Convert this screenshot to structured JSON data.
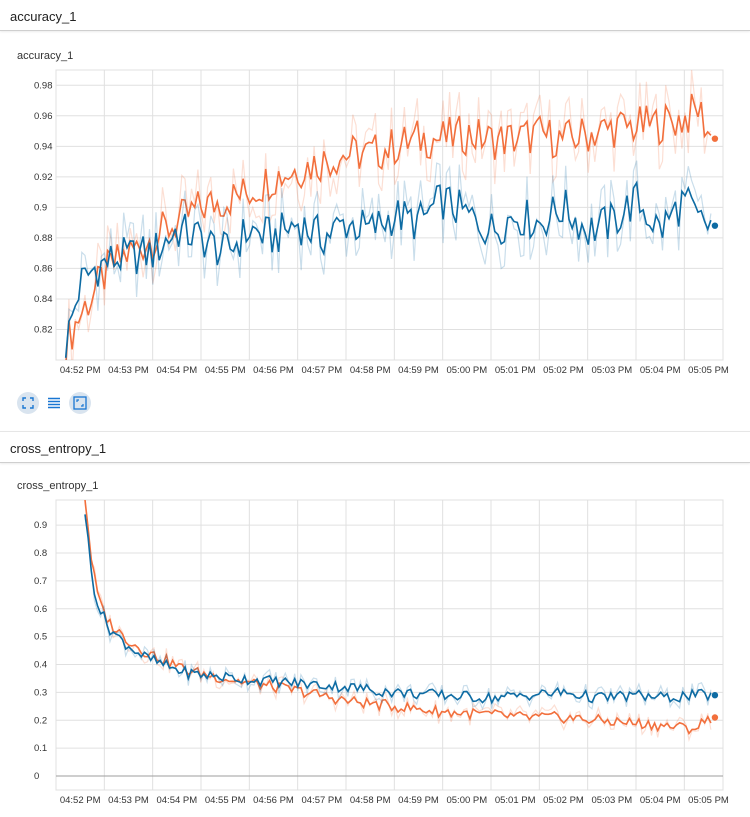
{
  "cards": [
    {
      "title": "accuracy_1",
      "chart_label": "accuracy_1"
    },
    {
      "title": "cross_entropy_1",
      "chart_label": "cross_entropy_1"
    }
  ],
  "toolbar": {
    "icons": [
      "fit-domain-icon",
      "toggle-log-icon",
      "expand-icon"
    ]
  },
  "colors": {
    "orange": "#f26f3c",
    "blue": "#0d6ba3",
    "grid": "#e0e0e0"
  },
  "chart_data": [
    {
      "type": "line",
      "title": "accuracy_1",
      "x_ticks": [
        "04:52 PM",
        "04:53 PM",
        "04:54 PM",
        "04:55 PM",
        "04:56 PM",
        "04:57 PM",
        "04:58 PM",
        "04:59 PM",
        "05:00 PM",
        "05:01 PM",
        "05:02 PM",
        "05:03 PM",
        "05:04 PM",
        "05:05 PM"
      ],
      "y_ticks": [
        "0.82",
        "0.84",
        "0.86",
        "0.88",
        "0.9",
        "0.92",
        "0.94",
        "0.96",
        "0.98"
      ],
      "ylim": [
        0.8,
        0.99
      ],
      "xlim_minutes": [
        0,
        13.8
      ],
      "grid": true,
      "series": [
        {
          "color": "orange",
          "x": [
            0.2,
            0.5,
            0.8,
            1.1,
            1.5,
            2.0,
            2.5,
            3.0,
            3.5,
            4.0,
            4.5,
            5.0,
            5.5,
            6.0,
            6.5,
            7.0,
            7.5,
            8.0,
            8.5,
            9.0,
            9.5,
            10.0,
            10.5,
            11.0,
            11.5,
            12.0,
            12.5,
            13.0,
            13.3,
            13.55
          ],
          "y": [
            0.81,
            0.83,
            0.845,
            0.86,
            0.87,
            0.88,
            0.89,
            0.9,
            0.905,
            0.91,
            0.92,
            0.925,
            0.93,
            0.935,
            0.935,
            0.94,
            0.945,
            0.945,
            0.948,
            0.944,
            0.945,
            0.948,
            0.944,
            0.948,
            0.952,
            0.953,
            0.955,
            0.958,
            0.965,
            0.945
          ]
        },
        {
          "color": "blue",
          "x": [
            0.2,
            0.5,
            0.8,
            1.1,
            1.5,
            2.0,
            2.5,
            3.0,
            3.5,
            4.0,
            4.5,
            5.0,
            5.5,
            6.0,
            6.5,
            7.0,
            7.5,
            8.0,
            8.5,
            9.0,
            9.5,
            10.0,
            10.5,
            11.0,
            11.5,
            12.0,
            12.5,
            13.0,
            13.3,
            13.55
          ],
          "y": [
            0.81,
            0.85,
            0.86,
            0.865,
            0.868,
            0.87,
            0.885,
            0.88,
            0.87,
            0.885,
            0.88,
            0.89,
            0.88,
            0.89,
            0.885,
            0.895,
            0.89,
            0.905,
            0.895,
            0.885,
            0.895,
            0.89,
            0.9,
            0.885,
            0.89,
            0.905,
            0.885,
            0.905,
            0.89,
            0.888
          ]
        }
      ]
    },
    {
      "type": "line",
      "title": "cross_entropy_1",
      "x_ticks": [
        "04:52 PM",
        "04:53 PM",
        "04:54 PM",
        "04:55 PM",
        "04:56 PM",
        "04:57 PM",
        "04:58 PM",
        "04:59 PM",
        "05:00 PM",
        "05:01 PM",
        "05:02 PM",
        "05:03 PM",
        "05:04 PM",
        "05:05 PM"
      ],
      "y_ticks": [
        "0",
        "0.1",
        "0.2",
        "0.3",
        "0.4",
        "0.5",
        "0.6",
        "0.7",
        "0.8",
        "0.9"
      ],
      "ylim": [
        -0.05,
        0.99
      ],
      "xlim_minutes": [
        0,
        13.8
      ],
      "grid": true,
      "series": [
        {
          "color": "orange",
          "x": [
            0.6,
            0.75,
            0.9,
            1.1,
            1.4,
            1.8,
            2.2,
            2.7,
            3.2,
            3.8,
            4.5,
            5.2,
            6.0,
            7.0,
            8.0,
            9.0,
            9.7,
            10.5,
            11.2,
            12.0,
            12.6,
            13.2,
            13.55
          ],
          "y": [
            1.0,
            0.75,
            0.62,
            0.55,
            0.5,
            0.45,
            0.42,
            0.38,
            0.36,
            0.34,
            0.32,
            0.3,
            0.27,
            0.25,
            0.23,
            0.22,
            0.21,
            0.21,
            0.2,
            0.19,
            0.18,
            0.17,
            0.21
          ]
        },
        {
          "color": "blue",
          "x": [
            0.6,
            0.75,
            0.9,
            1.1,
            1.4,
            1.8,
            2.2,
            2.7,
            3.2,
            3.8,
            4.5,
            5.2,
            6.0,
            7.0,
            8.0,
            9.0,
            9.7,
            10.5,
            11.2,
            12.0,
            12.6,
            13.2,
            13.55
          ],
          "y": [
            0.95,
            0.7,
            0.6,
            0.53,
            0.48,
            0.43,
            0.4,
            0.37,
            0.36,
            0.35,
            0.34,
            0.33,
            0.32,
            0.3,
            0.29,
            0.28,
            0.29,
            0.3,
            0.28,
            0.29,
            0.28,
            0.29,
            0.29
          ]
        }
      ]
    }
  ]
}
